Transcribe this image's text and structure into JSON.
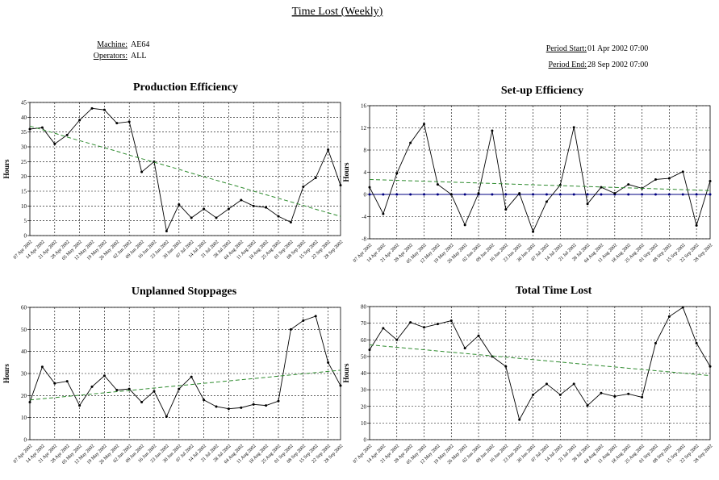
{
  "header": {
    "title": "Time Lost (Weekly)",
    "machine_label": "Machine:",
    "machine": "AE64",
    "operators_label": "Operators:",
    "operators": "ALL",
    "period_start_label": "Period Start:",
    "period_start": "01 Apr 2002 07:00",
    "period_end_label": "Period End:",
    "period_end": "28 Sep 2002 07:00"
  },
  "chart_data": [
    {
      "type": "line",
      "title": "Production Efficiency",
      "y_label": "Hours",
      "categories": [
        "07 Apr 2002",
        "14 Apr 2002",
        "21 Apr 2002",
        "28 Apr 2002",
        "05 May 2002",
        "12 May 2002",
        "19 May 2002",
        "26 May 2002",
        "02 Jun 2002",
        "09 Jun 2002",
        "16 Jun 2002",
        "23 Jun 2002",
        "30 Jun 2002",
        "07 Jul 2002",
        "14 Jul 2002",
        "21 Jul 2002",
        "28 Jul 2002",
        "04 Aug 2002",
        "11 Aug 2002",
        "18 Aug 2002",
        "25 Aug 2002",
        "01 Sep 2002",
        "08 Sep 2002",
        "15 Sep 2002",
        "22 Sep 2002",
        "28 Sep 2002"
      ],
      "ylim": [
        0,
        45
      ],
      "yticks": [
        0,
        5,
        10,
        15,
        20,
        25,
        30,
        35,
        40,
        45
      ],
      "grid": true,
      "series": [
        {
          "color": "#000000",
          "line_style": "solid",
          "marker": true,
          "values": [
            36,
            36.5,
            31,
            34,
            39,
            43,
            42.5,
            38,
            38.5,
            21.5,
            25,
            1.5,
            10.5,
            6,
            9,
            6,
            9,
            12,
            10,
            9.5,
            6.5,
            4.5,
            16.5,
            19.5,
            29,
            17
          ]
        },
        {
          "color": "#2e8b2e",
          "line_style": "dashed",
          "marker": false,
          "values": [
            37,
            35.8,
            34.6,
            33.3,
            32.1,
            30.9,
            29.7,
            28.5,
            27.2,
            26.0,
            24.8,
            23.6,
            22.4,
            21.1,
            19.9,
            18.7,
            17.5,
            16.3,
            15.0,
            13.8,
            12.6,
            11.4,
            10.2,
            8.9,
            7.7,
            6.5
          ]
        }
      ]
    },
    {
      "type": "line",
      "title": "Set-up Efficiency",
      "y_label": "Hours",
      "categories": [
        "07 Apr 2002",
        "14 Apr 2002",
        "21 Apr 2002",
        "28 Apr 2002",
        "05 May 2002",
        "12 May 2002",
        "19 May 2002",
        "26 May 2002",
        "02 Jun 2002",
        "09 Jun 2002",
        "16 Jun 2002",
        "23 Jun 2002",
        "30 Jun 2002",
        "07 Jul 2002",
        "14 Jul 2002",
        "21 Jul 2002",
        "28 Jul 2002",
        "04 Aug 2002",
        "11 Aug 2002",
        "18 Aug 2002",
        "25 Aug 2002",
        "01 Sep 2002",
        "08 Sep 2002",
        "15 Sep 2002",
        "22 Sep 2002",
        "28 Sep 2002"
      ],
      "ylim": [
        -8,
        16
      ],
      "yticks": [
        -8,
        -4,
        0,
        4,
        8,
        12,
        16
      ],
      "grid": true,
      "series": [
        {
          "color": "#000080",
          "line_style": "solid",
          "marker": true,
          "values": [
            0,
            0,
            0,
            0,
            0,
            0,
            0,
            0,
            0,
            0,
            0,
            0,
            0,
            0,
            0,
            0,
            0,
            0,
            0,
            0,
            0,
            0,
            0,
            0,
            0,
            0
          ]
        },
        {
          "color": "#000000",
          "line_style": "solid",
          "marker": true,
          "values": [
            1.3,
            -3.5,
            3.8,
            9.3,
            12.7,
            1.8,
            0,
            -5.5,
            0.2,
            11.5,
            -2.7,
            0.2,
            -6.7,
            -1.3,
            1.7,
            12.1,
            -1.7,
            1.3,
            0.2,
            1.8,
            1.1,
            2.7,
            2.9,
            4.1,
            -5.6,
            2.4
          ]
        },
        {
          "color": "#2e8b2e",
          "line_style": "dashed",
          "marker": false,
          "values": [
            2.7,
            2.62,
            2.54,
            2.46,
            2.38,
            2.3,
            2.22,
            2.14,
            2.06,
            1.98,
            1.9,
            1.82,
            1.74,
            1.66,
            1.58,
            1.5,
            1.42,
            1.34,
            1.26,
            1.18,
            1.1,
            1.02,
            0.94,
            0.86,
            0.78,
            0.7
          ]
        }
      ]
    },
    {
      "type": "line",
      "title": "Unplanned Stoppages",
      "y_label": "Hours",
      "categories": [
        "07 Apr 2002",
        "14 Apr 2002",
        "21 Apr 2002",
        "28 Apr 2002",
        "05 May 2002",
        "12 May 2002",
        "19 May 2002",
        "26 May 2002",
        "02 Jun 2002",
        "09 Jun 2002",
        "16 Jun 2002",
        "23 Jun 2002",
        "30 Jun 2002",
        "07 Jul 2002",
        "14 Jul 2002",
        "21 Jul 2002",
        "28 Jul 2002",
        "04 Aug 2002",
        "11 Aug 2002",
        "18 Aug 2002",
        "25 Aug 2002",
        "01 Sep 2002",
        "08 Sep 2002",
        "15 Sep 2002",
        "22 Sep 2002",
        "28 Sep 2002"
      ],
      "ylim": [
        0,
        60
      ],
      "yticks": [
        0,
        10,
        20,
        30,
        40,
        50,
        60
      ],
      "grid": true,
      "series": [
        {
          "color": "#000000",
          "line_style": "solid",
          "marker": true,
          "values": [
            17,
            33,
            25.5,
            26.5,
            15.5,
            24,
            29,
            22.5,
            23,
            17,
            22,
            10.5,
            23,
            28.5,
            18,
            15,
            14,
            14.5,
            16,
            15.5,
            17.5,
            50,
            54,
            56,
            35,
            24.5
          ]
        },
        {
          "color": "#2e8b2e",
          "line_style": "dashed",
          "marker": false,
          "values": [
            18,
            18.54,
            19.08,
            19.62,
            20.16,
            20.7,
            21.24,
            21.78,
            22.32,
            22.86,
            23.4,
            23.94,
            24.48,
            25.02,
            25.56,
            26.1,
            26.64,
            27.18,
            27.72,
            28.26,
            28.8,
            29.34,
            29.88,
            30.42,
            30.96,
            31.5
          ]
        }
      ]
    },
    {
      "type": "line",
      "title": "Total Time Lost",
      "y_label": "Hours",
      "categories": [
        "07 Apr 2002",
        "14 Apr 2002",
        "21 Apr 2002",
        "28 Apr 2002",
        "05 May 2002",
        "12 May 2002",
        "19 May 2002",
        "26 May 2002",
        "02 Jun 2002",
        "09 Jun 2002",
        "16 Jun 2002",
        "23 Jun 2002",
        "30 Jun 2002",
        "07 Jul 2002",
        "14 Jul 2002",
        "21 Jul 2002",
        "28 Jul 2002",
        "04 Aug 2002",
        "11 Aug 2002",
        "18 Aug 2002",
        "25 Aug 2002",
        "01 Sep 2002",
        "08 Sep 2002",
        "15 Sep 2002",
        "22 Sep 2002",
        "28 Sep 2002"
      ],
      "ylim": [
        0,
        80
      ],
      "yticks": [
        0,
        10,
        20,
        30,
        40,
        50,
        60,
        70,
        80
      ],
      "grid": true,
      "series": [
        {
          "color": "#000000",
          "line_style": "solid",
          "marker": true,
          "values": [
            54,
            67,
            60,
            70.5,
            67.5,
            69.5,
            71.5,
            55,
            62.5,
            50,
            44,
            12,
            27,
            33.5,
            27,
            33.5,
            20.5,
            28,
            26,
            27.5,
            25.5,
            58,
            74,
            79.5,
            58,
            44
          ]
        },
        {
          "color": "#2e8b2e",
          "line_style": "dashed",
          "marker": false,
          "values": [
            57,
            56.26,
            55.52,
            54.78,
            54.04,
            53.3,
            52.56,
            51.82,
            51.08,
            50.34,
            49.6,
            48.86,
            48.12,
            47.38,
            46.64,
            45.9,
            45.16,
            44.42,
            43.68,
            42.94,
            42.2,
            41.46,
            40.72,
            39.98,
            39.24,
            38.5
          ]
        }
      ]
    }
  ]
}
